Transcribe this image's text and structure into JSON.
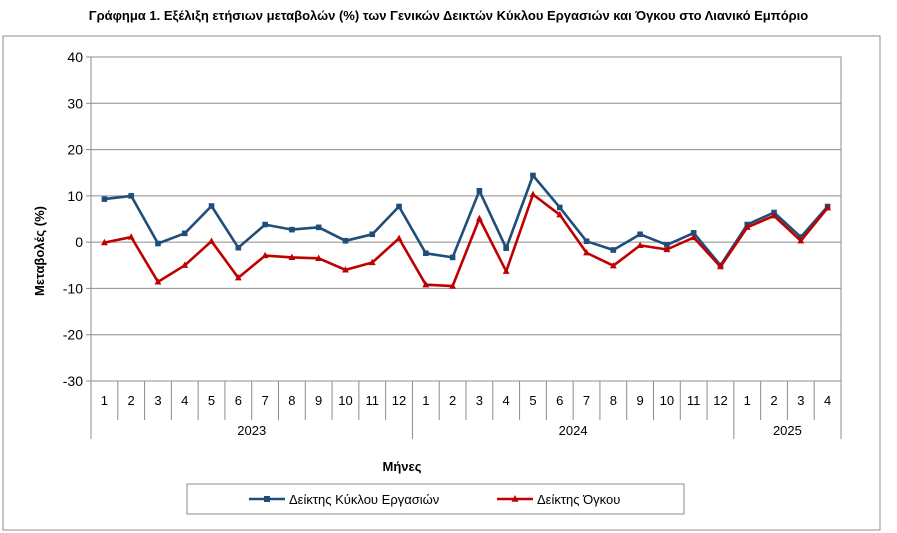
{
  "chart_data": {
    "type": "line",
    "title": "Γράφημα 1. Εξέλιξη ετήσιων μεταβολών (%) των Γενικών Δεικτών Κύκλου Εργασιών και Όγκου στο Λιανικό Εμπόριο",
    "xlabel": "Μήνες",
    "ylabel": "Μεταβολές (%)",
    "ylim": [
      -30,
      40
    ],
    "y_ticks": [
      "40",
      "30",
      "20",
      "10",
      "0",
      "-10",
      "-20",
      "-30"
    ],
    "grid": true,
    "legend_position": "bottom",
    "x_month_labels": [
      "1",
      "2",
      "3",
      "4",
      "5",
      "6",
      "7",
      "8",
      "9",
      "10",
      "11",
      "12",
      "1",
      "2",
      "3",
      "4",
      "5",
      "6",
      "7",
      "8",
      "9",
      "10",
      "11",
      "12",
      "1",
      "2",
      "3",
      "4"
    ],
    "year_groups": [
      {
        "label": "2023",
        "count": 12
      },
      {
        "label": "2024",
        "count": 12
      },
      {
        "label": "2025",
        "count": 4
      }
    ],
    "series": [
      {
        "name": "Δείκτης Κύκλου Εργασιών",
        "color": "#1F4E79",
        "marker": "square",
        "values": [
          9.3,
          10.0,
          -0.3,
          1.9,
          7.8,
          -1.2,
          3.8,
          2.7,
          3.2,
          0.3,
          1.7,
          7.7,
          -2.4,
          -3.3,
          11.1,
          -1.3,
          14.4,
          7.5,
          0.2,
          -1.7,
          1.7,
          -0.6,
          2.0,
          -5.0,
          3.8,
          6.4,
          1.1,
          7.7
        ]
      },
      {
        "name": "Δείκτης Όγκου",
        "color": "#C00000",
        "marker": "triangle",
        "values": [
          -0.1,
          1.1,
          -8.6,
          -5.0,
          0.2,
          -7.7,
          -2.9,
          -3.3,
          -3.5,
          -6.0,
          -4.4,
          0.8,
          -9.2,
          -9.5,
          5.1,
          -6.3,
          10.3,
          5.9,
          -2.3,
          -5.1,
          -0.7,
          -1.6,
          1.0,
          -5.3,
          3.2,
          5.7,
          0.3,
          7.4
        ]
      }
    ]
  }
}
